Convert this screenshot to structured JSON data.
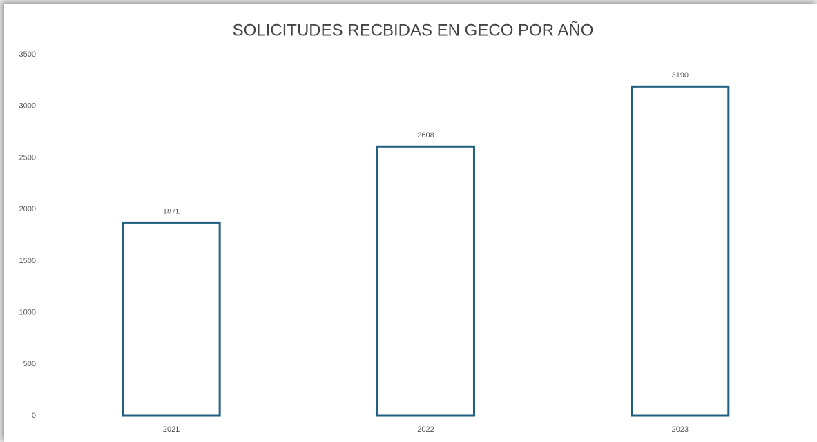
{
  "chart_data": {
    "type": "bar",
    "title": "SOLICITUDES RECBIDAS EN GECO POR AÑO",
    "categories": [
      "2021",
      "2022",
      "2023"
    ],
    "values": [
      1871,
      2608,
      3190
    ],
    "color": "#1f5f80",
    "ylim": [
      0,
      3500
    ],
    "yticks": [
      0,
      500,
      1000,
      1500,
      2000,
      2500,
      3000,
      3500
    ],
    "grid": false
  }
}
